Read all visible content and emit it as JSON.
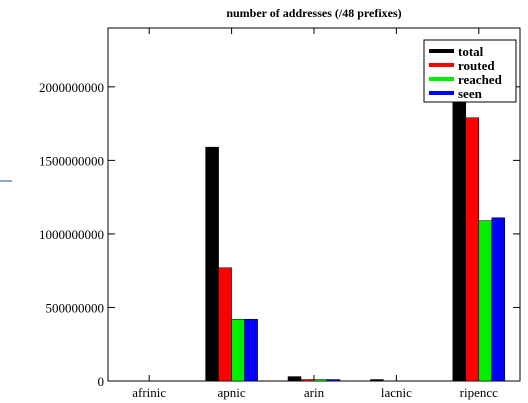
{
  "chart_data": {
    "type": "bar",
    "title": "number of addresses (/48 prefixes)",
    "xlabel": "",
    "ylabel": "",
    "categories": [
      "afrinic",
      "apnic",
      "arin",
      "lacnic",
      "ripencc"
    ],
    "series": [
      {
        "name": "total",
        "color": "#000000",
        "values": [
          0,
          1590000000,
          30000000,
          10000000,
          2140000000
        ]
      },
      {
        "name": "routed",
        "color": "#ff0000",
        "values": [
          0,
          770000000,
          10000000,
          0,
          1790000000
        ]
      },
      {
        "name": "reached",
        "color": "#00ee00",
        "values": [
          0,
          420000000,
          10000000,
          0,
          1090000000
        ]
      },
      {
        "name": "seen",
        "color": "#0000ff",
        "values": [
          0,
          420000000,
          10000000,
          0,
          1110000000
        ]
      }
    ],
    "ylim": [
      0,
      2400000000
    ],
    "yticks": [
      0,
      500000000,
      1000000000,
      1500000000,
      2000000000
    ],
    "ytick_labels": [
      "0",
      "500000000",
      "1000000000",
      "1500000000",
      "2000000000"
    ],
    "grid": false,
    "legend": "top-right"
  }
}
